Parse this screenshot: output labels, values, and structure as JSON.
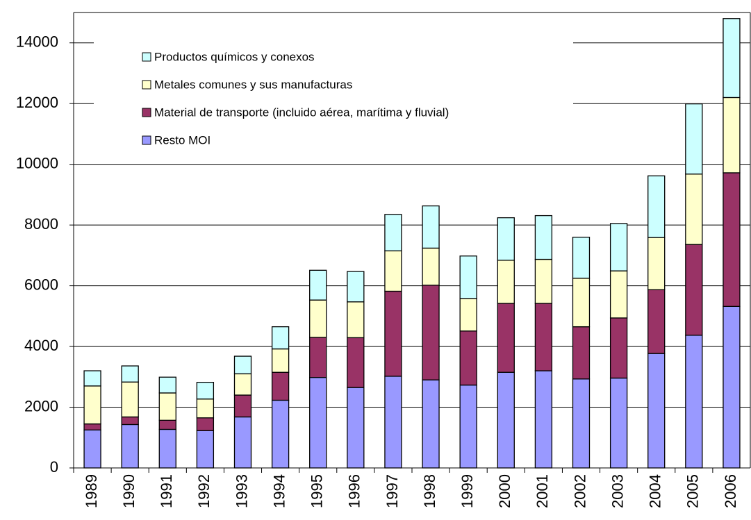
{
  "chart_data": {
    "type": "stacked_bar",
    "categories": [
      "1989",
      "1990",
      "1991",
      "1992",
      "1993",
      "1994",
      "1995",
      "1996",
      "1997",
      "1998",
      "1999",
      "2000",
      "2001",
      "2002",
      "2003",
      "2004",
      "2005",
      "2006"
    ],
    "series": [
      {
        "name": "Resto MOI",
        "color": "#9999ff",
        "values": [
          1250,
          1430,
          1270,
          1230,
          1680,
          2230,
          2980,
          2650,
          3020,
          2900,
          2730,
          3150,
          3200,
          2930,
          2960,
          3770,
          4370,
          5320
        ]
      },
      {
        "name": "Material de transporte (incluido aérea, marítima y fluvial)",
        "color": "#993366",
        "values": [
          200,
          250,
          300,
          420,
          720,
          920,
          1320,
          1640,
          2800,
          3120,
          1780,
          2270,
          2220,
          1720,
          1980,
          2100,
          2990,
          4400
        ]
      },
      {
        "name": "Metales comunes y sus manufacturas",
        "color": "#ffffcc",
        "values": [
          1250,
          1150,
          900,
          620,
          700,
          770,
          1230,
          1180,
          1330,
          1220,
          1070,
          1420,
          1450,
          1600,
          1550,
          1720,
          2320,
          2480
        ]
      },
      {
        "name": "Productos químicos y conexos",
        "color": "#ccffff",
        "values": [
          500,
          530,
          520,
          550,
          580,
          730,
          980,
          1000,
          1200,
          1390,
          1400,
          1400,
          1440,
          1350,
          1560,
          2030,
          2310,
          2600
        ]
      }
    ],
    "ylim": [
      0,
      15000
    ],
    "yticks": [
      0,
      2000,
      4000,
      6000,
      8000,
      10000,
      12000,
      14000
    ],
    "grid": true,
    "legend": "upper left"
  }
}
